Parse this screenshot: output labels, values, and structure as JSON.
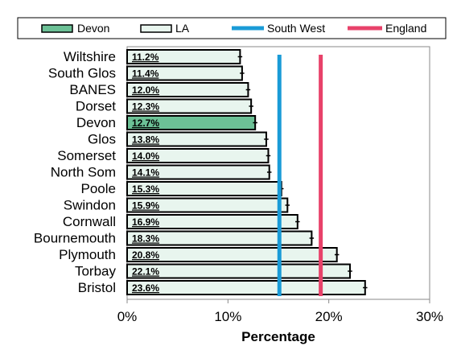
{
  "chart_data": {
    "type": "bar",
    "orientation": "horizontal",
    "categories": [
      "Wiltshire",
      "South Glos",
      "BANES",
      "Dorset",
      "Devon",
      "Glos",
      "Somerset",
      "North Som",
      "Poole",
      "Swindon",
      "Cornwall",
      "Bournemouth",
      "Plymouth",
      "Torbay",
      "Bristol"
    ],
    "series": [
      {
        "name": "LA",
        "values": [
          11.2,
          11.4,
          12.0,
          12.3,
          12.7,
          13.8,
          14.0,
          14.1,
          15.3,
          15.9,
          16.9,
          18.3,
          20.8,
          22.1,
          23.6
        ],
        "value_labels": [
          "11.2%",
          "11.4%",
          "12.0%",
          "12.3%",
          "12.7%",
          "13.8%",
          "14.0%",
          "14.1%",
          "15.3%",
          "15.9%",
          "16.9%",
          "18.3%",
          "20.8%",
          "22.1%",
          "23.6%"
        ]
      }
    ],
    "highlight": {
      "name": "Devon",
      "category": "Devon"
    },
    "reference_lines": [
      {
        "name": "South West",
        "value": 15.1,
        "color": "#1a9bd7"
      },
      {
        "name": "England",
        "value": 19.2,
        "color": "#e8426a"
      }
    ],
    "error_bars": true,
    "xlabel": "Percentage",
    "xlim": [
      0,
      30
    ],
    "x_ticks": [
      "0%",
      "10%",
      "20%",
      "30%"
    ],
    "legend": {
      "placement": "top",
      "entries": [
        "Devon",
        "LA",
        "South West",
        "England"
      ]
    },
    "colors": {
      "bar_fill": "#e8f5ee",
      "highlight_fill": "#6cc196",
      "bar_stroke": "#000000"
    }
  }
}
